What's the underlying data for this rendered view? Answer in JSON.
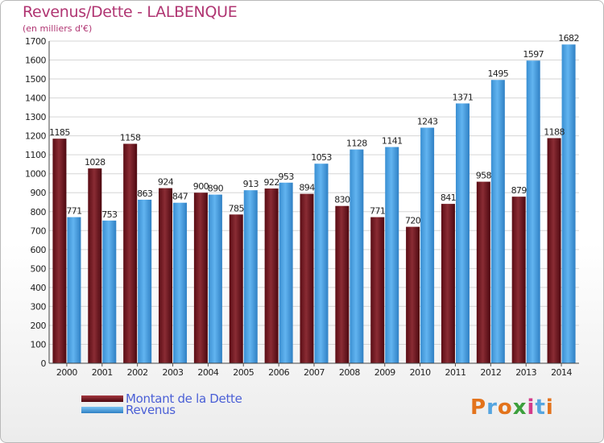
{
  "title": "Revenus/Dette - LALBENQUE",
  "subtitle": "(en milliers d'€)",
  "logo": {
    "text": "Proxiti",
    "colors": [
      "#e3731c",
      "#55a5e0",
      "#e3731c",
      "#3c9f3c",
      "#d33b8a",
      "#55a5e0",
      "#e3731c"
    ]
  },
  "colors": {
    "dette": "#7a1c24",
    "revenus": "#4ea6e6",
    "title": "#b03572",
    "legend": "#4a5fd6"
  },
  "chart_data": {
    "type": "bar",
    "categories": [
      "2000",
      "2001",
      "2002",
      "2003",
      "2004",
      "2005",
      "2006",
      "2007",
      "2008",
      "2009",
      "2010",
      "2011",
      "2012",
      "2013",
      "2014"
    ],
    "series": [
      {
        "name": "Montant de la Dette",
        "values": [
          1185,
          1028,
          1158,
          924,
          900,
          785,
          922,
          894,
          830,
          771,
          720,
          841,
          958,
          879,
          1188
        ]
      },
      {
        "name": "Revenus",
        "values": [
          771,
          753,
          863,
          847,
          890,
          913,
          953,
          1053,
          1128,
          1141,
          1243,
          1371,
          1495,
          1597,
          1682
        ]
      }
    ],
    "ylim": [
      0,
      1700
    ],
    "yticks": [
      0,
      100,
      200,
      300,
      400,
      500,
      600,
      700,
      800,
      900,
      1000,
      1100,
      1200,
      1300,
      1400,
      1500,
      1600,
      1700
    ],
    "grid": true,
    "legend": "bottom-left"
  }
}
